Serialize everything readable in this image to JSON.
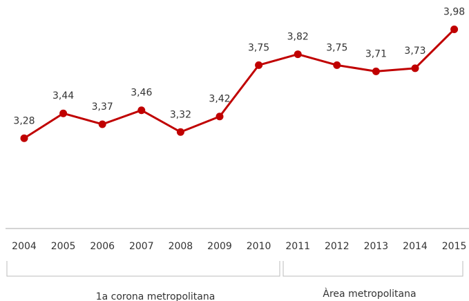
{
  "chart_data": {
    "type": "line",
    "categories": [
      "2004",
      "2005",
      "2006",
      "2007",
      "2008",
      "2009",
      "2010",
      "2011",
      "2012",
      "2013",
      "2014",
      "2015"
    ],
    "series": [
      {
        "color": "#c00000",
        "values": [
          3.28,
          3.44,
          3.37,
          3.46,
          3.32,
          3.42,
          3.75,
          3.82,
          3.75,
          3.71,
          3.73,
          3.98
        ],
        "value_labels": [
          "3,28",
          "3,44",
          "3,37",
          "3,46",
          "3,32",
          "3,42",
          "3,75",
          "3,82",
          "3,75",
          "3,71",
          "3,73",
          "3,98"
        ]
      }
    ],
    "ylim": [
      2.7,
      4.0
    ],
    "annotations": [
      "1a corona metropolitana",
      "Àrea metropolitana"
    ]
  }
}
